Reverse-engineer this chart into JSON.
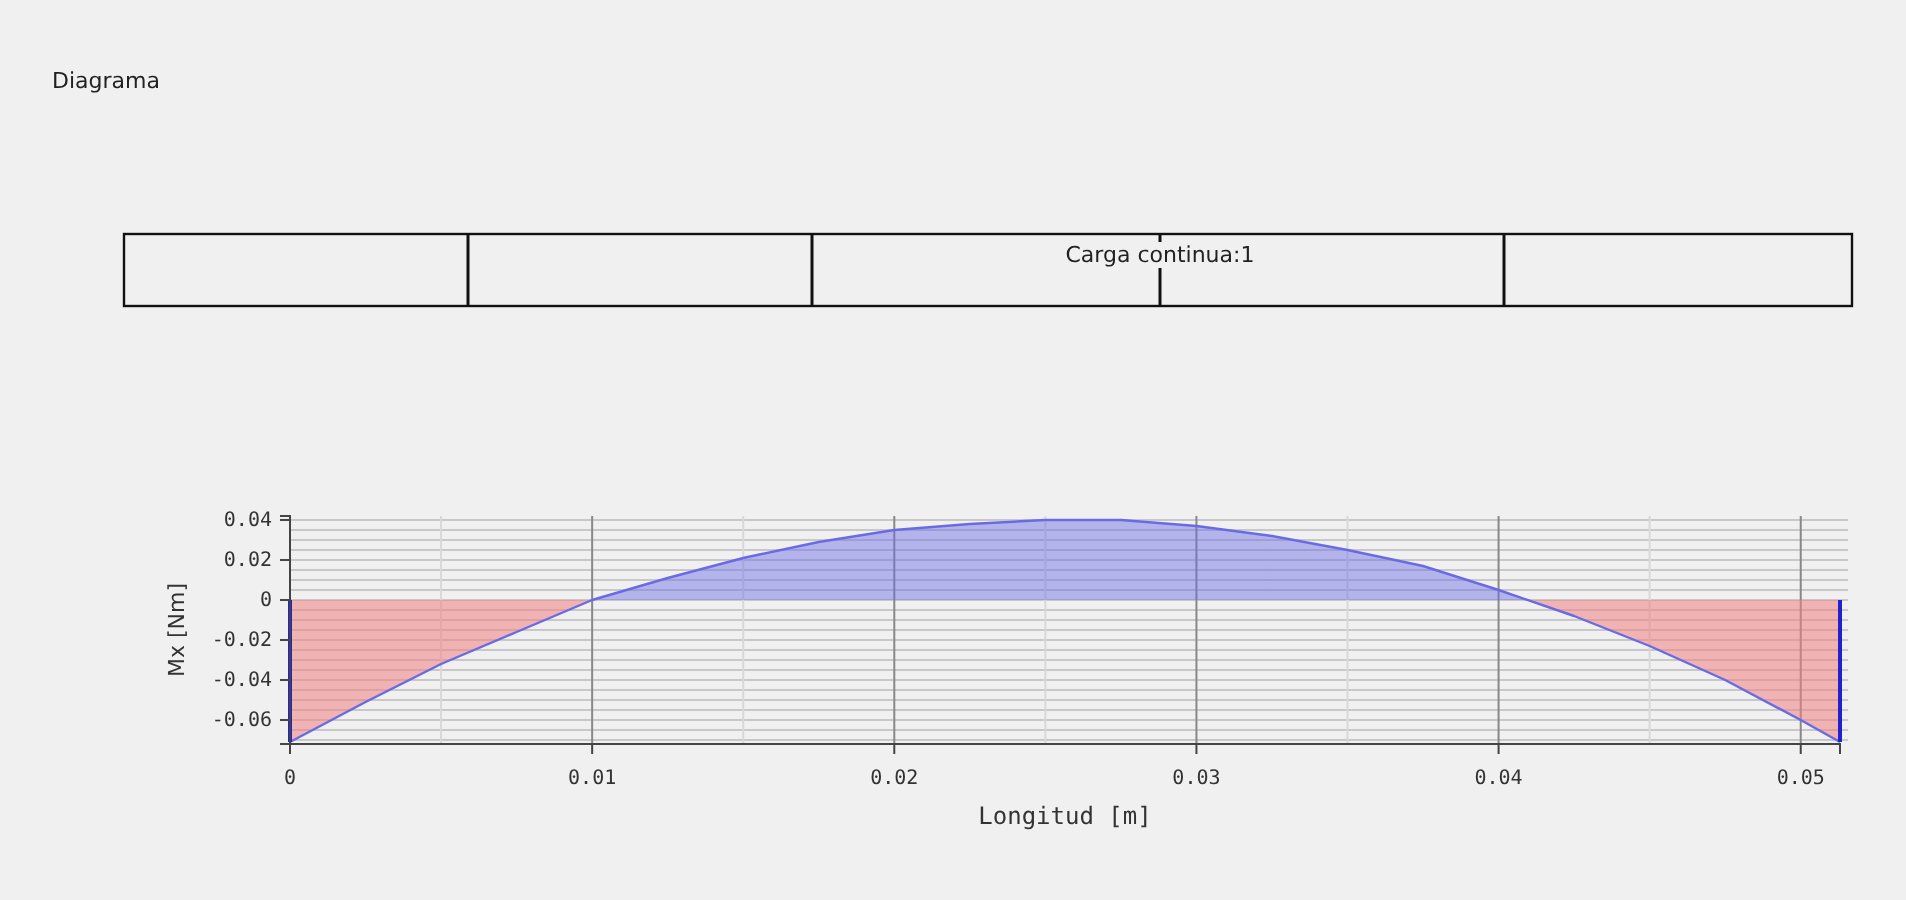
{
  "chart_data": {
    "type": "area",
    "title": "Diagrama",
    "xlabel": "Longitud [m]",
    "ylabel": "Mx [Nm]",
    "annotations": [
      "Carga continua:1"
    ],
    "x": [
      0,
      0.0025,
      0.005,
      0.0075,
      0.01,
      0.0125,
      0.015,
      0.0175,
      0.02,
      0.0225,
      0.025,
      0.0275,
      0.03,
      0.0325,
      0.035,
      0.0375,
      0.04,
      0.0425,
      0.045,
      0.0475,
      0.05,
      0.0513
    ],
    "series": [
      {
        "color": "#6a6ae6",
        "values": [
          -0.071,
          -0.051,
          -0.032,
          -0.016,
          0,
          0.011,
          0.021,
          0.029,
          0.035,
          0.038,
          0.04,
          0.04,
          0.037,
          0.032,
          0.025,
          0.017,
          0.005,
          -0.008,
          -0.023,
          -0.04,
          -0.06,
          -0.071
        ]
      }
    ],
    "xlim": [
      0,
      0.0513
    ],
    "ylim": [
      -0.072,
      0.042
    ],
    "xticks": [
      0,
      0.01,
      0.02,
      0.03,
      0.04,
      0.05
    ],
    "yticks": [
      -0.06,
      -0.04,
      -0.02,
      0,
      0.02,
      0.04
    ],
    "grid": true
  }
}
